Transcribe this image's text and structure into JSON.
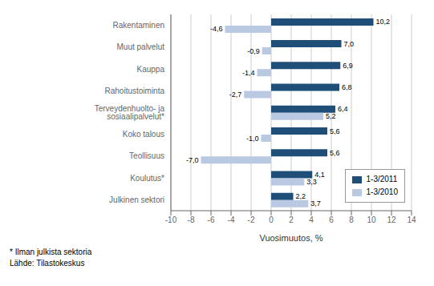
{
  "chart_data": {
    "type": "bar",
    "orientation": "horizontal",
    "categories": [
      "Rakentaminen",
      "Muut palvelut",
      "Kauppa",
      "Rahoitustoiminta",
      "Terveydenhuolto- ja sosiaalipalvelut*",
      "Koko talous",
      "Teollisuus",
      "Koulutus*",
      "Julkinen sektori"
    ],
    "series": [
      {
        "name": "1-3/2011",
        "color": "#1F4E79",
        "values": [
          10.2,
          7.0,
          6.9,
          6.8,
          6.4,
          5.6,
          5.6,
          4.1,
          2.2
        ],
        "value_labels": [
          "10,2",
          "7,0",
          "6,9",
          "6,8",
          "6,4",
          "5,6",
          "5,6",
          "4,1",
          "2,2"
        ]
      },
      {
        "name": "1-3/2010",
        "color": "#B8C9E1",
        "values": [
          -4.6,
          -0.9,
          -1.4,
          -2.7,
          5.2,
          -1.0,
          -7.0,
          3.3,
          3.7
        ],
        "value_labels": [
          "-4,6",
          "-0,9",
          "-1,4",
          "-2,7",
          "5,2",
          "-1,0",
          "-7,0",
          "3,3",
          "3,7"
        ]
      }
    ],
    "xlabel": "Vuosimuutos, %",
    "xlim": [
      -10,
      14
    ],
    "xticks": [
      -10,
      -8,
      -6,
      -4,
      -2,
      0,
      2,
      4,
      6,
      8,
      10,
      12,
      14
    ],
    "grid": true,
    "legend": "lower right",
    "data_labels": true,
    "annotations": [
      "* Ilman julkista sektoria",
      "Lähde: Tilastokeskus"
    ]
  }
}
